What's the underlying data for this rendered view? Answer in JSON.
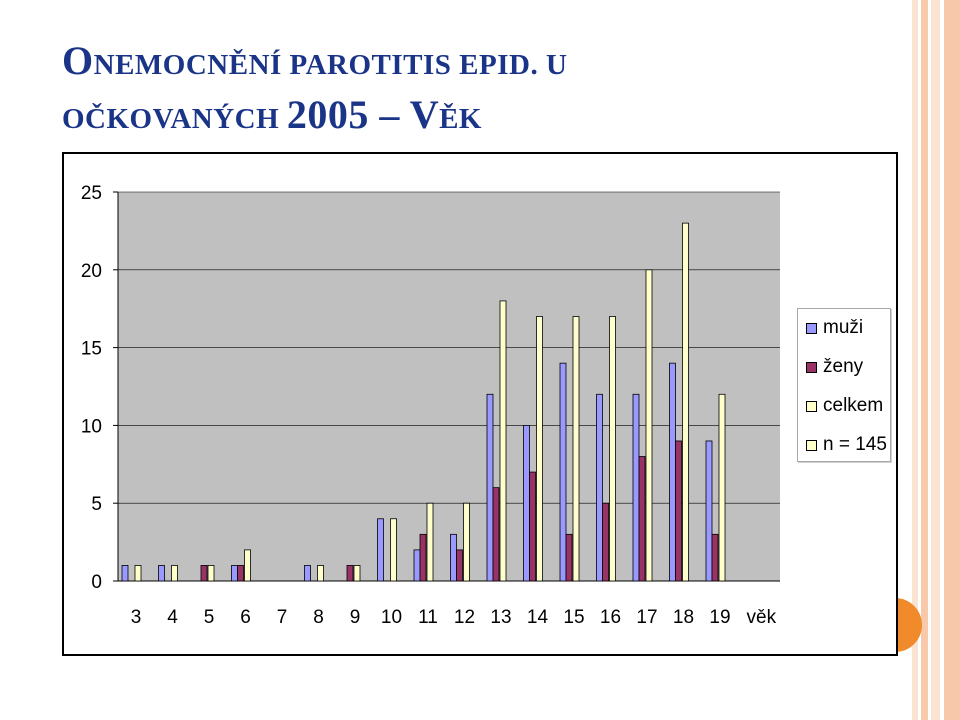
{
  "slide": {
    "title_line1_cap": "O",
    "title_line1_rest": "NEMOCNĚNÍ PAROTITIS EPID. U",
    "title_line2_rest": "OČKOVANÝCH ",
    "title_year": "2005",
    "title_dash": " – ",
    "title_age_cap": "V",
    "title_age_rest": "ĚK"
  },
  "colors": {
    "title": "#1a3488",
    "muzi": "#9999ff",
    "zeny": "#993366",
    "celkem": "#ffffcc",
    "plot_bg": "#c0c0c0",
    "accent_orange": "#f08a2a",
    "stripe_light": "#fbe3d2",
    "stripe_mid": "#f7c9aa"
  },
  "chart_data": {
    "type": "bar",
    "categories": [
      "3",
      "4",
      "5",
      "6",
      "7",
      "8",
      "9",
      "10",
      "11",
      "12",
      "13",
      "14",
      "15",
      "16",
      "17",
      "18",
      "19"
    ],
    "x_axis_suffix": "věk",
    "series": [
      {
        "name": "muži",
        "values": [
          1,
          1,
          0,
          1,
          0,
          1,
          0,
          4,
          2,
          3,
          12,
          10,
          14,
          12,
          12,
          14,
          9
        ]
      },
      {
        "name": "ženy",
        "values": [
          0,
          0,
          1,
          1,
          0,
          0,
          1,
          0,
          3,
          2,
          6,
          7,
          3,
          5,
          8,
          9,
          3
        ]
      },
      {
        "name": "celkem",
        "values": [
          1,
          1,
          1,
          2,
          0,
          1,
          1,
          4,
          5,
          5,
          18,
          17,
          17,
          17,
          20,
          23,
          12
        ]
      }
    ],
    "legend_extra": "n = 145",
    "legend_position": "right",
    "ylim": [
      0,
      25
    ],
    "yticks": [
      0,
      5,
      10,
      15,
      20,
      25
    ],
    "grid": true
  }
}
